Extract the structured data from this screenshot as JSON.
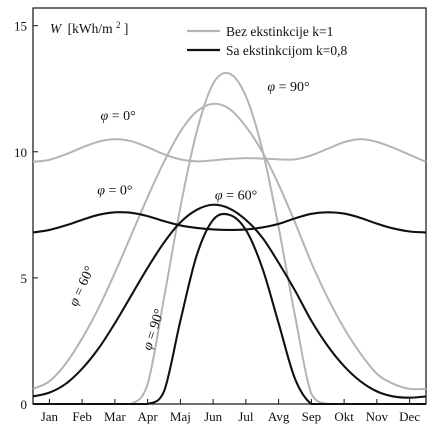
{
  "chart_data": {
    "type": "line",
    "ylabel": {
      "symbol": "W",
      "unit": "[kWh/m",
      "sup": "2",
      "close": "]"
    },
    "x": [
      0.5,
      1,
      1.5,
      2,
      2.5,
      3,
      3.5,
      4,
      4.5,
      5,
      5.5,
      6,
      6.5,
      7,
      7.5,
      8,
      8.5,
      9,
      9.5,
      10,
      10.5,
      11,
      11.5,
      12,
      12.5
    ],
    "categories": [
      "Jan",
      "Feb",
      "Mar",
      "Apr",
      "Maj",
      "Jun",
      "Jul",
      "Avg",
      "Sep",
      "Okt",
      "Nov",
      "Dec"
    ],
    "xlim": [
      0.5,
      12.5
    ],
    "ylim": [
      0,
      15.7
    ],
    "yticks": [
      0,
      5,
      10,
      15
    ],
    "legend": [
      {
        "label": "Bez ekstinkcije k=1",
        "color": "#b4b4b4"
      },
      {
        "label": "Sa ekstinkcijom k=0,8",
        "color": "#111111"
      }
    ],
    "series": [
      {
        "group": "no_ext",
        "color": "#b4b4b4",
        "values": [
          9.6,
          9.68,
          9.9,
          10.17,
          10.4,
          10.5,
          10.42,
          10.18,
          9.9,
          9.7,
          9.62,
          9.66,
          9.72,
          9.75,
          9.73,
          9.7,
          9.7,
          9.86,
          10.12,
          10.38,
          10.5,
          10.39,
          10.16,
          9.88,
          9.6
        ]
      },
      {
        "group": "no_ext",
        "color": "#b4b4b4",
        "values": [
          0.6,
          0.9,
          1.6,
          2.6,
          3.8,
          5.2,
          6.7,
          8.2,
          9.6,
          10.8,
          11.6,
          11.9,
          11.7,
          11.0,
          10.0,
          8.7,
          7.2,
          5.6,
          4.2,
          3.0,
          2.0,
          1.2,
          0.8,
          0.6,
          0.6
        ]
      },
      {
        "group": "no_ext",
        "color": "#b4b4b4",
        "values": [
          0,
          0,
          0,
          0,
          0,
          0,
          0,
          0.8,
          4.2,
          7.8,
          10.8,
          12.7,
          13.1,
          12.2,
          10.1,
          7.0,
          3.5,
          0.4,
          0,
          0,
          0,
          0,
          0,
          0,
          0
        ]
      },
      {
        "group": "ext",
        "color": "#111111",
        "values": [
          6.8,
          6.9,
          7.08,
          7.3,
          7.5,
          7.6,
          7.58,
          7.45,
          7.25,
          7.08,
          6.98,
          6.92,
          6.9,
          6.92,
          7.0,
          7.14,
          7.36,
          7.54,
          7.6,
          7.55,
          7.38,
          7.15,
          6.96,
          6.84,
          6.8
        ]
      },
      {
        "group": "ext",
        "color": "#111111",
        "values": [
          0.3,
          0.45,
          0.8,
          1.4,
          2.2,
          3.2,
          4.3,
          5.4,
          6.4,
          7.2,
          7.7,
          7.9,
          7.75,
          7.3,
          6.6,
          5.6,
          4.5,
          3.3,
          2.3,
          1.5,
          0.9,
          0.5,
          0.3,
          0.25,
          0.3
        ]
      },
      {
        "group": "ext",
        "color": "#111111",
        "values": [
          0,
          0,
          0,
          0,
          0,
          0,
          0,
          0,
          0.5,
          3.3,
          5.9,
          7.3,
          7.5,
          6.9,
          5.4,
          3.2,
          1.0,
          0,
          0,
          0,
          0,
          0,
          0,
          0,
          0
        ]
      }
    ],
    "annotations": [
      {
        "var": "φ",
        "rest": " = 0°",
        "x": 3.1,
        "y": 11.25,
        "rotate": 0
      },
      {
        "var": "φ",
        "rest": " = 0°",
        "x": 3.0,
        "y": 8.3,
        "rotate": 0
      },
      {
        "var": "φ",
        "rest": " = 90°",
        "x": 8.3,
        "y": 12.4,
        "rotate": 0
      },
      {
        "var": "φ",
        "rest": " = 60°",
        "x": 6.7,
        "y": 8.1,
        "rotate": 0
      },
      {
        "var": "φ",
        "rest": " = 60°",
        "x": 2.1,
        "y": 4.6,
        "rotate": -65
      },
      {
        "var": "φ",
        "rest": " = 90°",
        "x": 4.3,
        "y": 2.9,
        "rotate": -72
      }
    ]
  }
}
